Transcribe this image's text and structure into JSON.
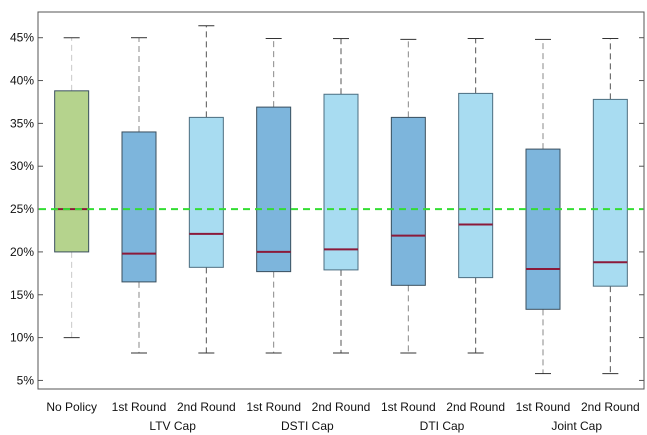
{
  "chart_data": {
    "type": "boxplot",
    "title": "",
    "xlabel": "",
    "ylabel": "",
    "ylim": [
      4,
      48
    ],
    "yticks": [
      "5%",
      "10%",
      "15%",
      "20%",
      "25%",
      "30%",
      "35%",
      "40%",
      "45%"
    ],
    "ytick_values": [
      5,
      10,
      15,
      20,
      25,
      30,
      35,
      40,
      45
    ],
    "reference_line": {
      "value": 25,
      "color": "#33dd33",
      "style": "dashed"
    },
    "colors": {
      "no_policy": "#b5d38d",
      "first_round": "#7db5dc",
      "second_round": "#a8dcf1",
      "median": "#8b1a3a"
    },
    "categories": [
      "No Policy",
      "1st Round",
      "2nd Round",
      "1st Round",
      "2nd Round",
      "1st Round",
      "2nd Round",
      "1st Round",
      "2nd Round"
    ],
    "groups": [
      {
        "label": "LTV Cap"
      },
      {
        "label": "DSTI Cap"
      },
      {
        "label": "DTI Cap"
      },
      {
        "label": "Joint Cap"
      }
    ],
    "boxes": [
      {
        "category": "No Policy",
        "kind": "no_policy",
        "whisker_low": 10,
        "q1": 20,
        "median": 25,
        "q3": 38.8,
        "whisker_high": 45
      },
      {
        "category": "1st Round",
        "kind": "first_round",
        "whisker_low": 8.2,
        "q1": 16.5,
        "median": 19.8,
        "q3": 34,
        "whisker_high": 45
      },
      {
        "category": "2nd Round",
        "kind": "second_round",
        "whisker_low": 8.2,
        "q1": 18.2,
        "median": 22.1,
        "q3": 35.7,
        "whisker_high": 46.4
      },
      {
        "category": "1st Round",
        "kind": "first_round",
        "whisker_low": 8.2,
        "q1": 17.7,
        "median": 20,
        "q3": 36.9,
        "whisker_high": 44.9
      },
      {
        "category": "2nd Round",
        "kind": "second_round",
        "whisker_low": 8.2,
        "q1": 17.9,
        "median": 20.3,
        "q3": 38.4,
        "whisker_high": 44.9
      },
      {
        "category": "1st Round",
        "kind": "first_round",
        "whisker_low": 8.2,
        "q1": 16.1,
        "median": 21.9,
        "q3": 35.7,
        "whisker_high": 44.8
      },
      {
        "category": "2nd Round",
        "kind": "second_round",
        "whisker_low": 8.2,
        "q1": 17,
        "median": 23.2,
        "q3": 38.5,
        "whisker_high": 44.9
      },
      {
        "category": "1st Round",
        "kind": "first_round",
        "whisker_low": 5.8,
        "q1": 13.3,
        "median": 18,
        "q3": 32,
        "whisker_high": 44.8
      },
      {
        "category": "2nd Round",
        "kind": "second_round",
        "whisker_low": 5.8,
        "q1": 16,
        "median": 18.8,
        "q3": 37.8,
        "whisker_high": 44.9
      }
    ]
  }
}
